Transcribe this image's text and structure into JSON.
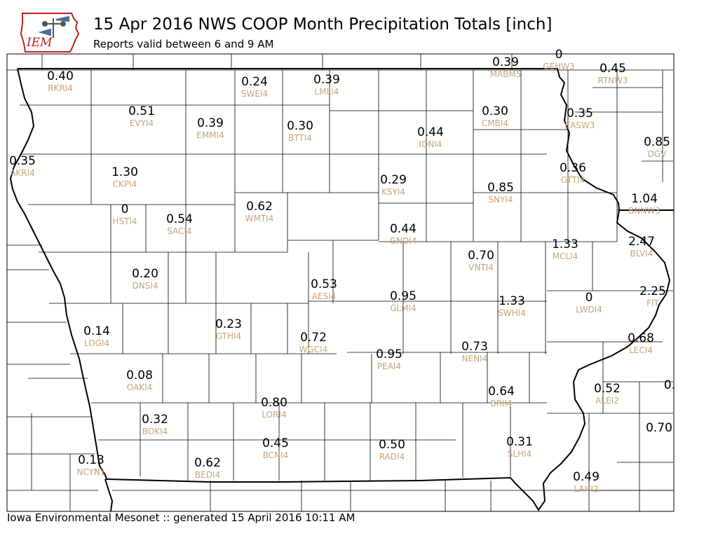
{
  "header": {
    "title": "15 Apr 2016 NWS COOP Month Precipitation Totals [inch]",
    "subtitle": "Reports valid between 6 and 9 AM"
  },
  "logo": {
    "text": "IEM"
  },
  "footer": {
    "text": "Iowa Environmental Mesonet :: generated 15 April 2016 10:11 AM"
  },
  "colors": {
    "value_text": "#000000",
    "station_id": "#c8a27a",
    "county_lines": "#000000",
    "state_border": "#000000",
    "logo_red": "#c0201e"
  },
  "stations": [
    {
      "id": "RKRI4",
      "value": "0.40"
    },
    {
      "id": "SWEI4",
      "value": "0.24"
    },
    {
      "id": "LMLI4",
      "value": "0.39"
    },
    {
      "id": "MABM5",
      "value": "0.39"
    },
    {
      "id": "GEHW3",
      "value": "0"
    },
    {
      "id": "RTNW3",
      "value": "0.45"
    },
    {
      "id": "EVYI4",
      "value": "0.51"
    },
    {
      "id": "EMMI4",
      "value": "0.39"
    },
    {
      "id": "BTTI4",
      "value": "0.30"
    },
    {
      "id": "CMBI4",
      "value": "0.30"
    },
    {
      "id": "IONI4",
      "value": "0.44"
    },
    {
      "id": "EASW3",
      "value": "0.35"
    },
    {
      "id": "DGV",
      "value": "0.85"
    },
    {
      "id": "AKRI4",
      "value": "0.35"
    },
    {
      "id": "CKPI4",
      "value": "1.30"
    },
    {
      "id": "KSYI4",
      "value": "0.29"
    },
    {
      "id": "SNYI4",
      "value": "0.85"
    },
    {
      "id": "GTTI4",
      "value": "0.36"
    },
    {
      "id": "BNNW3",
      "value": "1.04"
    },
    {
      "id": "HSTI4",
      "value": "0"
    },
    {
      "id": "SACI4",
      "value": "0.54"
    },
    {
      "id": "WMTI4",
      "value": "0.62"
    },
    {
      "id": "GNDI4",
      "value": "0.44"
    },
    {
      "id": "MCLI4",
      "value": "1.33"
    },
    {
      "id": "BLVI4",
      "value": "2.47"
    },
    {
      "id": "VNTI4",
      "value": "0.70"
    },
    {
      "id": "DNSI4",
      "value": "0.20"
    },
    {
      "id": "AESI4",
      "value": "0.53"
    },
    {
      "id": "GLMI4",
      "value": "0.95"
    },
    {
      "id": "SWHI4",
      "value": "1.33"
    },
    {
      "id": "LWDI4",
      "value": "0"
    },
    {
      "id": "FIT",
      "value": "2.25"
    },
    {
      "id": "LOGI4",
      "value": "0.14"
    },
    {
      "id": "GTHI4",
      "value": "0.23"
    },
    {
      "id": "WGCI4",
      "value": "0.72"
    },
    {
      "id": "PEAI4",
      "value": "0.95"
    },
    {
      "id": "NENI4",
      "value": "0.73"
    },
    {
      "id": "LECI4",
      "value": "0.68"
    },
    {
      "id": "OAKI4",
      "value": "0.08"
    },
    {
      "id": "BRII4",
      "value": "0.64"
    },
    {
      "id": "ALEI2",
      "value": "0.52"
    },
    {
      "id": "",
      "value": "0."
    },
    {
      "id": "BOKI4",
      "value": "0.32"
    },
    {
      "id": "LORI4",
      "value": "0.80"
    },
    {
      "id": "",
      "value": "0.70"
    },
    {
      "id": "BCNI4",
      "value": "0.45"
    },
    {
      "id": "RADI4",
      "value": "0.50"
    },
    {
      "id": "SLHI4",
      "value": "0.31"
    },
    {
      "id": "NCYN1",
      "value": "0.13"
    },
    {
      "id": "BEDI4",
      "value": "0.62"
    },
    {
      "id": "LAHI2",
      "value": "0.49"
    }
  ]
}
